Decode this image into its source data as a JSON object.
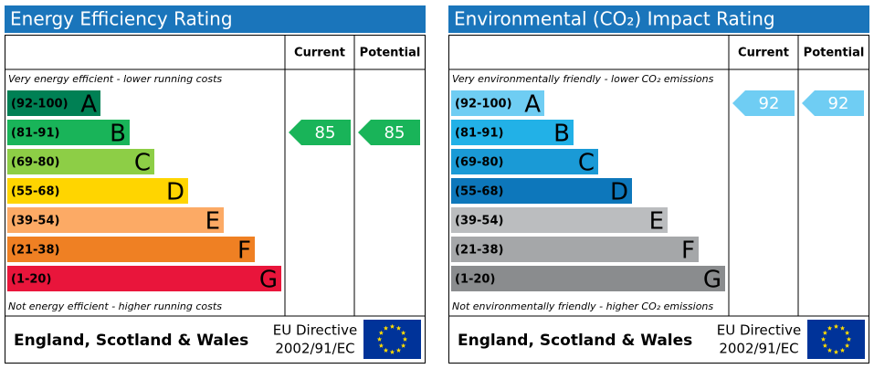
{
  "panels": [
    {
      "title": "Energy Efficiency Rating",
      "columns": [
        "Current",
        "Potential"
      ],
      "top_note": "Very energy efficient - lower running costs",
      "bottom_note": "Not energy efficient - higher running costs",
      "bands": [
        {
          "range": "(92-100)",
          "letter": "A",
          "color": "#008054"
        },
        {
          "range": "(81-91)",
          "letter": "B",
          "color": "#19b459"
        },
        {
          "range": "(69-80)",
          "letter": "C",
          "color": "#8dce46"
        },
        {
          "range": "(55-68)",
          "letter": "D",
          "color": "#ffd500"
        },
        {
          "range": "(39-54)",
          "letter": "E",
          "color": "#fcaa65"
        },
        {
          "range": "(21-38)",
          "letter": "F",
          "color": "#ef8023"
        },
        {
          "range": "(1-20)",
          "letter": "G",
          "color": "#e9153b"
        }
      ],
      "current": 85,
      "potential": 85,
      "footer": {
        "region": "England, Scotland & Wales",
        "directive": "EU Directive",
        "directive_code": "2002/91/EC"
      }
    },
    {
      "title": "Environmental (CO₂) Impact Rating",
      "columns": [
        "Current",
        "Potential"
      ],
      "top_note": "Very environmentally friendly - lower CO₂ emissions",
      "bottom_note": "Not environmentally friendly - higher CO₂ emissions",
      "bands": [
        {
          "range": "(92-100)",
          "letter": "A",
          "color": "#6fcdf3"
        },
        {
          "range": "(81-91)",
          "letter": "B",
          "color": "#22b1e7"
        },
        {
          "range": "(69-80)",
          "letter": "C",
          "color": "#1a9ad6"
        },
        {
          "range": "(55-68)",
          "letter": "D",
          "color": "#0d77bb"
        },
        {
          "range": "(39-54)",
          "letter": "E",
          "color": "#bbbdbf"
        },
        {
          "range": "(21-38)",
          "letter": "F",
          "color": "#a5a7a9"
        },
        {
          "range": "(1-20)",
          "letter": "G",
          "color": "#8a8c8e"
        }
      ],
      "current": 92,
      "potential": 92,
      "footer": {
        "region": "England, Scotland & Wales",
        "directive": "EU Directive",
        "directive_code": "2002/91/EC"
      }
    }
  ]
}
